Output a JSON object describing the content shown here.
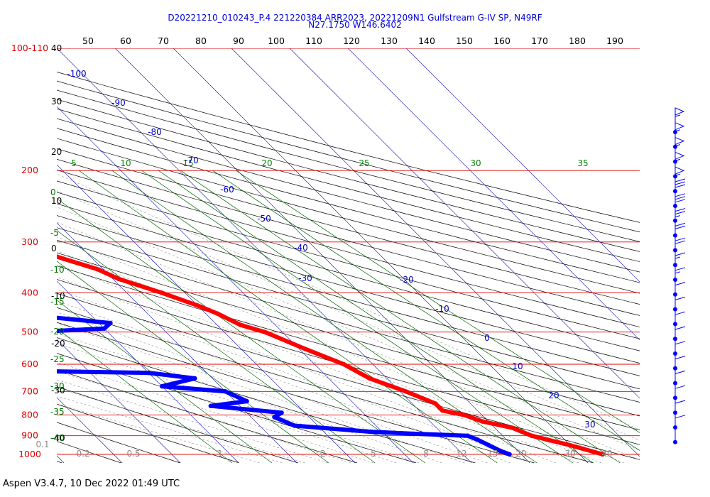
{
  "header": {
    "title_line1": "D20221210_010243_P.4 221220384 ARR2023, 20221209N1 Gulfstream G-IV SP, N49RF",
    "title_line2": "N27.1750 W146.6402"
  },
  "footer": {
    "text": "Aspen V3.4.7, 10 Dec 2022  01:49 UTC"
  },
  "colors": {
    "isobar": "#dd0000",
    "isotherm": "#0000aa",
    "dry_adiabat": "#000000",
    "moist_adiabat": "#777777",
    "mixing_ratio": "#006600",
    "temperature_profile": "#ff0000",
    "dewpoint_profile": "#0000ff",
    "wind_barbs": "#0000ff"
  },
  "chart_data": {
    "type": "skew-t",
    "top_axis_labels": [
      "50",
      "60",
      "70",
      "80",
      "90",
      "100",
      "110",
      "120",
      "130",
      "140",
      "150",
      "160",
      "170",
      "180",
      "190"
    ],
    "pressure_labels": [
      {
        "text": "100-110",
        "p": 100
      },
      {
        "text": "200",
        "p": 200
      },
      {
        "text": "300",
        "p": 300
      },
      {
        "text": "400",
        "p": 400
      },
      {
        "text": "500",
        "p": 500
      },
      {
        "text": "600",
        "p": 600
      },
      {
        "text": "700",
        "p": 700
      },
      {
        "text": "800",
        "p": 800
      },
      {
        "text": "900",
        "p": 900
      },
      {
        "text": "1000",
        "p": 1000
      }
    ],
    "isotherm_labels_left": [
      {
        "text": "-100",
        "t": -100
      },
      {
        "text": "-90",
        "t": -90
      },
      {
        "text": "-80",
        "t": -80
      },
      {
        "text": "-70",
        "t": -70
      },
      {
        "text": "-60",
        "t": -60
      },
      {
        "text": "-50",
        "t": -50
      },
      {
        "text": "-40",
        "t": -40
      },
      {
        "text": "-30",
        "t": -30
      }
    ],
    "isotherm_labels_right": [
      {
        "text": "-20",
        "t": -20
      },
      {
        "text": "-10",
        "t": -10
      },
      {
        "text": "0",
        "t": 0
      },
      {
        "text": "10",
        "t": 10
      },
      {
        "text": "20",
        "t": 20
      },
      {
        "text": "30",
        "t": 30
      }
    ],
    "green_left_labels": [
      "0",
      "-5",
      "-10",
      "-15",
      "-20",
      "-25",
      "-30",
      "-35",
      "-40"
    ],
    "green_top_labels": [
      "5",
      "10",
      "15",
      "20",
      "25",
      "30",
      "35"
    ],
    "black_left_labels": [
      "40",
      "30",
      "20",
      "10",
      "0",
      "-10",
      "-20",
      "-30",
      "-40"
    ],
    "mixing_ratio_bottom_labels": [
      "0.1",
      "0.2",
      "0.5",
      "1",
      "2",
      "5",
      "8",
      "12",
      "15",
      "20",
      "30",
      "40"
    ],
    "temperature_profile": [
      [
        160,
        -58
      ],
      [
        175,
        -61
      ],
      [
        190,
        -60
      ],
      [
        200,
        -58
      ],
      [
        230,
        -53
      ],
      [
        260,
        -48
      ],
      [
        300,
        -41
      ],
      [
        330,
        -35
      ],
      [
        350,
        -31
      ],
      [
        370,
        -29
      ],
      [
        400,
        -24
      ],
      [
        430,
        -20
      ],
      [
        450,
        -18
      ],
      [
        480,
        -16
      ],
      [
        500,
        -13
      ],
      [
        550,
        -9
      ],
      [
        600,
        -5
      ],
      [
        650,
        -3
      ],
      [
        700,
        1
      ],
      [
        750,
        4
      ],
      [
        780,
        4
      ],
      [
        800,
        7
      ],
      [
        830,
        9
      ],
      [
        860,
        13
      ],
      [
        880,
        14
      ],
      [
        900,
        15
      ],
      [
        920,
        17
      ],
      [
        950,
        20
      ],
      [
        1000,
        24
      ]
    ],
    "dewpoint_profile": [
      [
        200,
        -68
      ],
      [
        215,
        -64
      ],
      [
        235,
        -62
      ],
      [
        260,
        -63
      ],
      [
        280,
        -60
      ],
      [
        300,
        -60
      ],
      [
        320,
        -63
      ],
      [
        340,
        -61
      ],
      [
        360,
        -57
      ],
      [
        370,
        -50
      ],
      [
        390,
        -55
      ],
      [
        410,
        -60
      ],
      [
        430,
        -58
      ],
      [
        440,
        -50
      ],
      [
        460,
        -47
      ],
      [
        475,
        -38
      ],
      [
        490,
        -40
      ],
      [
        500,
        -53
      ],
      [
        515,
        -72
      ],
      [
        530,
        -85
      ],
      [
        550,
        -80
      ],
      [
        570,
        -84
      ],
      [
        600,
        -82
      ],
      [
        620,
        -70
      ],
      [
        630,
        -40
      ],
      [
        650,
        -33
      ],
      [
        680,
        -40
      ],
      [
        700,
        -30
      ],
      [
        740,
        -28
      ],
      [
        760,
        -35
      ],
      [
        790,
        -24
      ],
      [
        810,
        -26
      ],
      [
        850,
        -24
      ],
      [
        880,
        -12
      ],
      [
        890,
        -5
      ],
      [
        900,
        4
      ],
      [
        920,
        5
      ],
      [
        950,
        6
      ],
      [
        980,
        7
      ],
      [
        1000,
        8
      ]
    ],
    "wind_barbs_kt": [
      55,
      55,
      55,
      55,
      55,
      30,
      30,
      25,
      20,
      20,
      15,
      15,
      10,
      10,
      10,
      10,
      10,
      10,
      10,
      10,
      10,
      10
    ],
    "xlim_c": [
      -110,
      40
    ],
    "ylim_hpa": [
      100,
      1000
    ]
  }
}
